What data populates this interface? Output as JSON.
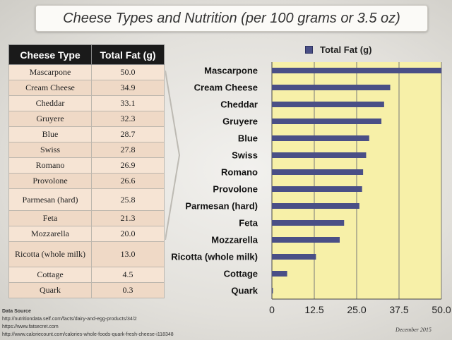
{
  "title": "Cheese Types and Nutrition (per 100 grams or 3.5 oz)",
  "table": {
    "headers": [
      "Cheese Type",
      "Total Fat (g)"
    ],
    "rows": [
      {
        "name": "Mascarpone",
        "fat": "50.0"
      },
      {
        "name": "Cream Cheese",
        "fat": "34.9"
      },
      {
        "name": "Cheddar",
        "fat": "33.1"
      },
      {
        "name": "Gruyere",
        "fat": "32.3"
      },
      {
        "name": "Blue",
        "fat": "28.7"
      },
      {
        "name": "Swiss",
        "fat": "27.8"
      },
      {
        "name": "Romano",
        "fat": "26.9"
      },
      {
        "name": "Provolone",
        "fat": "26.6"
      },
      {
        "name": "Parmesan (hard)",
        "fat": "25.8"
      },
      {
        "name": "Feta",
        "fat": "21.3"
      },
      {
        "name": "Mozzarella",
        "fat": "20.0"
      },
      {
        "name": "Ricotta (whole milk)",
        "fat": "13.0"
      },
      {
        "name": "Cottage",
        "fat": "4.5"
      },
      {
        "name": "Quark",
        "fat": "0.3"
      }
    ]
  },
  "chart_data": {
    "type": "bar",
    "orientation": "horizontal",
    "categories": [
      "Mascarpone",
      "Cream Cheese",
      "Cheddar",
      "Gruyere",
      "Blue",
      "Swiss",
      "Romano",
      "Provolone",
      "Parmesan (hard)",
      "Feta",
      "Mozzarella",
      "Ricotta (whole milk)",
      "Cottage",
      "Quark"
    ],
    "series": [
      {
        "name": "Total Fat (g)",
        "values": [
          50.0,
          34.9,
          33.1,
          32.3,
          28.7,
          27.8,
          26.9,
          26.6,
          25.8,
          21.3,
          20.0,
          13.0,
          4.5,
          0.3
        ]
      }
    ],
    "xlim": [
      0,
      50
    ],
    "xticks": [
      "0",
      "12.5",
      "25.0",
      "37.5",
      "50.0"
    ],
    "grid": "vertical",
    "legend": "top",
    "bar_color": "#4a4f86",
    "plot_background": "#f7f0a8"
  },
  "source": {
    "label": "Data Source",
    "links": [
      "http://nutritiondata.self.com/facts/dairy-and-egg-products/34/2",
      "https://www.fatsecret.com",
      "http://www.caloriecount.com/calories-whole-foods-quark-fresh-cheese-i118348"
    ]
  },
  "date": "December 2015"
}
